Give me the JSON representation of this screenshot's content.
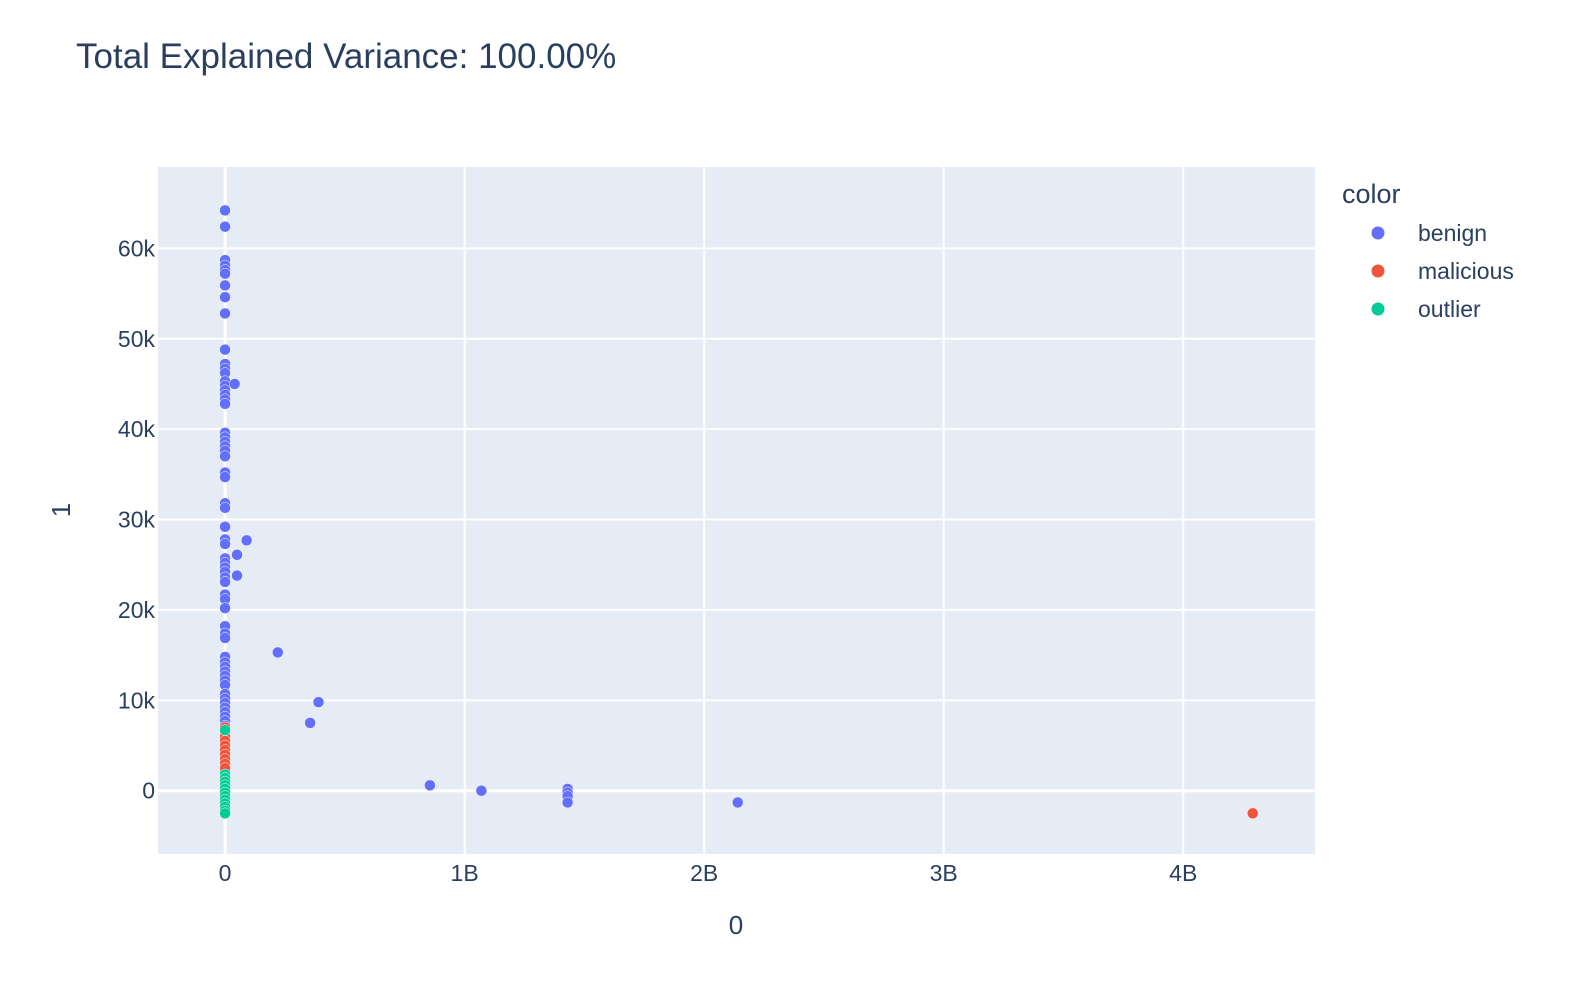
{
  "chart_data": {
    "type": "scatter",
    "title": "Total Explained Variance: 100.00%",
    "xlabel": "0",
    "ylabel": "1",
    "xlim": [
      -280000000,
      4550000000
    ],
    "ylim": [
      -7000,
      69000
    ],
    "x_ticks": [
      {
        "value": 0,
        "label": "0"
      },
      {
        "value": 1000000000,
        "label": "1B"
      },
      {
        "value": 2000000000,
        "label": "2B"
      },
      {
        "value": 3000000000,
        "label": "3B"
      },
      {
        "value": 4000000000,
        "label": "4B"
      }
    ],
    "y_ticks": [
      {
        "value": 0,
        "label": "0"
      },
      {
        "value": 10000,
        "label": "10k"
      },
      {
        "value": 20000,
        "label": "20k"
      },
      {
        "value": 30000,
        "label": "30k"
      },
      {
        "value": 40000,
        "label": "40k"
      },
      {
        "value": 50000,
        "label": "50k"
      },
      {
        "value": 60000,
        "label": "60k"
      }
    ],
    "grid": true,
    "legend": {
      "title": "color",
      "placement": "right"
    },
    "series": [
      {
        "name": "benign",
        "color": "#636efa",
        "points": [
          [
            0,
            64200
          ],
          [
            0,
            62400
          ],
          [
            0,
            58700
          ],
          [
            0,
            58100
          ],
          [
            0,
            57600
          ],
          [
            0,
            57200
          ],
          [
            0,
            55900
          ],
          [
            0,
            54600
          ],
          [
            0,
            52800
          ],
          [
            0,
            48800
          ],
          [
            0,
            47200
          ],
          [
            0,
            46700
          ],
          [
            0,
            46200
          ],
          [
            0,
            45300
          ],
          [
            0,
            44800
          ],
          [
            0,
            44300
          ],
          [
            0,
            43800
          ],
          [
            0,
            43300
          ],
          [
            0,
            42800
          ],
          [
            0,
            39600
          ],
          [
            0,
            39100
          ],
          [
            0,
            38600
          ],
          [
            0,
            38100
          ],
          [
            0,
            37600
          ],
          [
            0,
            37000
          ],
          [
            0,
            35200
          ],
          [
            0,
            34700
          ],
          [
            0,
            31800
          ],
          [
            0,
            31300
          ],
          [
            0,
            29200
          ],
          [
            0,
            27800
          ],
          [
            0,
            27300
          ],
          [
            0,
            25700
          ],
          [
            0,
            25200
          ],
          [
            0,
            24700
          ],
          [
            0,
            24200
          ],
          [
            0,
            23600
          ],
          [
            0,
            23100
          ],
          [
            0,
            21700
          ],
          [
            0,
            21200
          ],
          [
            0,
            20200
          ],
          [
            0,
            18200
          ],
          [
            0,
            17400
          ],
          [
            0,
            16900
          ],
          [
            0,
            14800
          ],
          [
            0,
            14200
          ],
          [
            0,
            13700
          ],
          [
            0,
            13200
          ],
          [
            0,
            12700
          ],
          [
            0,
            12200
          ],
          [
            0,
            11700
          ],
          [
            0,
            10700
          ],
          [
            0,
            10200
          ],
          [
            0,
            9700
          ],
          [
            0,
            9200
          ],
          [
            0,
            8700
          ],
          [
            0,
            8200
          ],
          [
            0,
            7700
          ],
          [
            0,
            7200
          ],
          [
            0,
            6700
          ],
          [
            0,
            6200
          ],
          [
            0,
            5700
          ],
          [
            0,
            5200
          ],
          [
            0,
            4700
          ],
          [
            0,
            4200
          ],
          [
            0,
            3700
          ],
          [
            0,
            3200
          ],
          [
            0,
            2700
          ],
          [
            0,
            2200
          ],
          [
            0,
            1700
          ],
          [
            0,
            1200
          ],
          [
            0,
            700
          ],
          [
            0,
            200
          ],
          [
            40000000,
            45000
          ],
          [
            90000000,
            27700
          ],
          [
            50000000,
            26100
          ],
          [
            50000000,
            23800
          ],
          [
            220000000,
            15300
          ],
          [
            390000000,
            9800
          ],
          [
            355000000,
            7500
          ],
          [
            855000000,
            600
          ],
          [
            1070000000,
            0
          ],
          [
            1430000000,
            200
          ],
          [
            1430000000,
            -200
          ],
          [
            1430000000,
            -600
          ],
          [
            1430000000,
            -1300
          ],
          [
            2140000000,
            -1300
          ]
        ]
      },
      {
        "name": "malicious",
        "color": "#ef553b",
        "points": [
          [
            0,
            7000
          ],
          [
            0,
            6500
          ],
          [
            0,
            6000
          ],
          [
            0,
            5500
          ],
          [
            0,
            5000
          ],
          [
            0,
            4500
          ],
          [
            0,
            4000
          ],
          [
            0,
            3500
          ],
          [
            0,
            3000
          ],
          [
            0,
            2500
          ],
          [
            4290000000,
            -2500
          ]
        ]
      },
      {
        "name": "outlier",
        "color": "#00cc96",
        "points": [
          [
            0,
            6700
          ],
          [
            0,
            1800
          ],
          [
            0,
            1400
          ],
          [
            0,
            1000
          ],
          [
            0,
            600
          ],
          [
            0,
            200
          ],
          [
            0,
            -200
          ],
          [
            0,
            -600
          ],
          [
            0,
            -1000
          ],
          [
            0,
            -1400
          ],
          [
            0,
            -1800
          ],
          [
            0,
            -2200
          ],
          [
            0,
            -2500
          ]
        ]
      }
    ]
  }
}
